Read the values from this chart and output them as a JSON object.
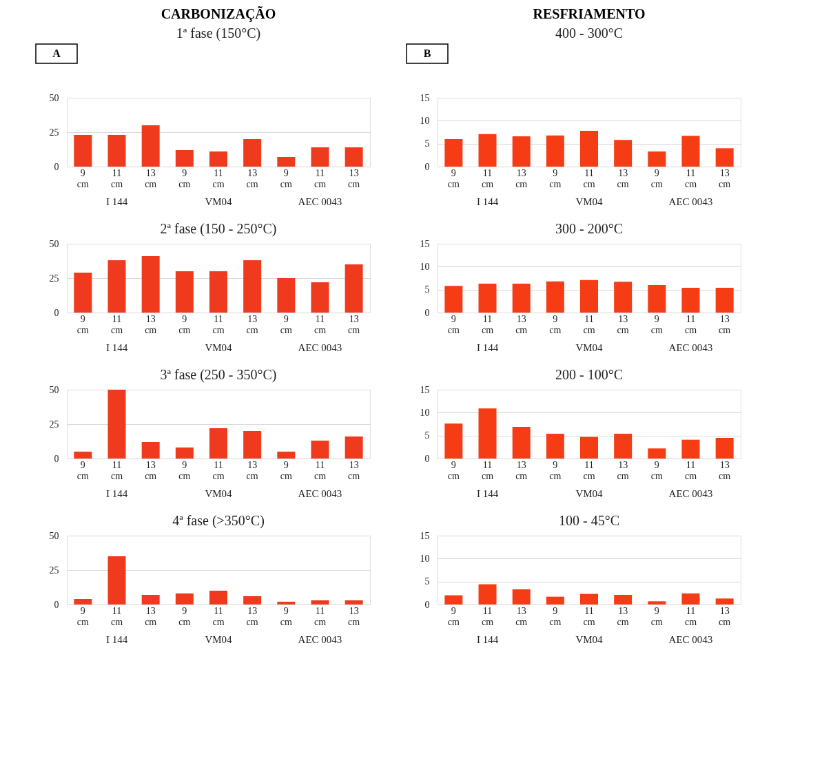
{
  "chart_data": [
    {
      "type": "bar",
      "title": "CARBONIZAÇÃO",
      "subtitle": "1ª fase  (150°C)",
      "categories": [
        "9 cm",
        "11 cm",
        "13 cm",
        "9 cm",
        "11 cm",
        "13 cm",
        "9 cm",
        "11 cm",
        "13 cm"
      ],
      "values": [
        23,
        23,
        30,
        12,
        11,
        20,
        7,
        14,
        14
      ],
      "color": "#f03a1e",
      "ylim": [
        0,
        50
      ],
      "yticks": [
        0,
        25,
        50
      ],
      "grid": "y",
      "annotations": [
        "I 144",
        "VM04",
        "AEC 0043",
        "A"
      ]
    },
    {
      "type": "bar",
      "title": "2ª fase  (150 - 250°C)",
      "categories": [
        "9 cm",
        "11 cm",
        "13 cm",
        "9 cm",
        "11 cm",
        "13 cm",
        "9 cm",
        "11 cm",
        "13 cm"
      ],
      "values": [
        29,
        38,
        41,
        30,
        30,
        38,
        25,
        22,
        35
      ],
      "color": "#f03a1e",
      "ylim": [
        0,
        50
      ],
      "yticks": [
        0,
        25,
        50
      ],
      "grid": "y",
      "annotations": [
        "I 144",
        "VM04",
        "AEC 0043"
      ]
    },
    {
      "type": "bar",
      "title": "3ª fase  (250 - 350°C)",
      "categories": [
        "9 cm",
        "11 cm",
        "13 cm",
        "9 cm",
        "11 cm",
        "13 cm",
        "9 cm",
        "11 cm",
        "13 cm"
      ],
      "values": [
        5,
        50,
        12,
        8,
        22,
        20,
        5,
        13,
        16
      ],
      "color": "#f03a1e",
      "ylim": [
        0,
        50
      ],
      "yticks": [
        0,
        25,
        50
      ],
      "grid": "y",
      "annotations": [
        "I 144",
        "VM04",
        "AEC 0043"
      ]
    },
    {
      "type": "bar",
      "title": "4ª fase  (>350°C)",
      "categories": [
        "9 cm",
        "11 cm",
        "13 cm",
        "9 cm",
        "11 cm",
        "13 cm",
        "9 cm",
        "11 cm",
        "13 cm"
      ],
      "values": [
        4,
        35,
        7,
        8,
        10,
        6,
        2,
        3,
        3
      ],
      "color": "#f03a1e",
      "ylim": [
        0,
        50
      ],
      "yticks": [
        0,
        25,
        50
      ],
      "grid": "y",
      "annotations": [
        "I 144",
        "VM04",
        "AEC 0043"
      ]
    },
    {
      "type": "bar",
      "title": "RESFRIAMENTO",
      "subtitle": "400 - 300°C",
      "categories": [
        "9 cm",
        "11 cm",
        "13 cm",
        "9 cm",
        "11 cm",
        "13 cm",
        "9 cm",
        "11 cm",
        "13 cm"
      ],
      "values": [
        6,
        7.1,
        6.6,
        6.8,
        7.8,
        5.8,
        3.3,
        6.7,
        4
      ],
      "color": "#f53c14",
      "ylim": [
        0,
        15
      ],
      "yticks": [
        0,
        5,
        10,
        15
      ],
      "grid": "y",
      "annotations": [
        "I 144",
        "VM04",
        "AEC 0043",
        "B"
      ]
    },
    {
      "type": "bar",
      "title": "300 - 200°C",
      "categories": [
        "9 cm",
        "11 cm",
        "13 cm",
        "9 cm",
        "11 cm",
        "13 cm",
        "9 cm",
        "11 cm",
        "13 cm"
      ],
      "values": [
        5.8,
        6.3,
        6.3,
        6.8,
        7.1,
        6.7,
        6,
        5.4,
        5.4
      ],
      "color": "#f53c14",
      "ylim": [
        0,
        15
      ],
      "yticks": [
        0,
        5,
        10,
        15
      ],
      "grid": "y",
      "annotations": [
        "I 144",
        "VM04",
        "AEC 0043"
      ]
    },
    {
      "type": "bar",
      "title": "200 - 100°C",
      "categories": [
        "9 cm",
        "11 cm",
        "13 cm",
        "9 cm",
        "11 cm",
        "13 cm",
        "9 cm",
        "11 cm",
        "13 cm"
      ],
      "values": [
        7.6,
        10.9,
        6.9,
        5.4,
        4.7,
        5.4,
        2.2,
        4.1,
        4.5
      ],
      "color": "#f53c14",
      "ylim": [
        0,
        15
      ],
      "yticks": [
        0,
        5,
        10,
        15
      ],
      "grid": "y",
      "annotations": [
        "I 144",
        "VM04",
        "AEC 0043"
      ]
    },
    {
      "type": "bar",
      "title": "100 - 45°C",
      "categories": [
        "9 cm",
        "11 cm",
        "13 cm",
        "9 cm",
        "11 cm",
        "13 cm",
        "9 cm",
        "11 cm",
        "13 cm"
      ],
      "values": [
        2,
        4.4,
        3.3,
        1.7,
        2.3,
        2.1,
        0.7,
        2.4,
        1.3
      ],
      "color": "#f53c14",
      "ylim": [
        0,
        15
      ],
      "yticks": [
        0,
        5,
        10,
        15
      ],
      "grid": "y",
      "annotations": [
        "I 144",
        "VM04",
        "AEC 0043"
      ]
    }
  ]
}
